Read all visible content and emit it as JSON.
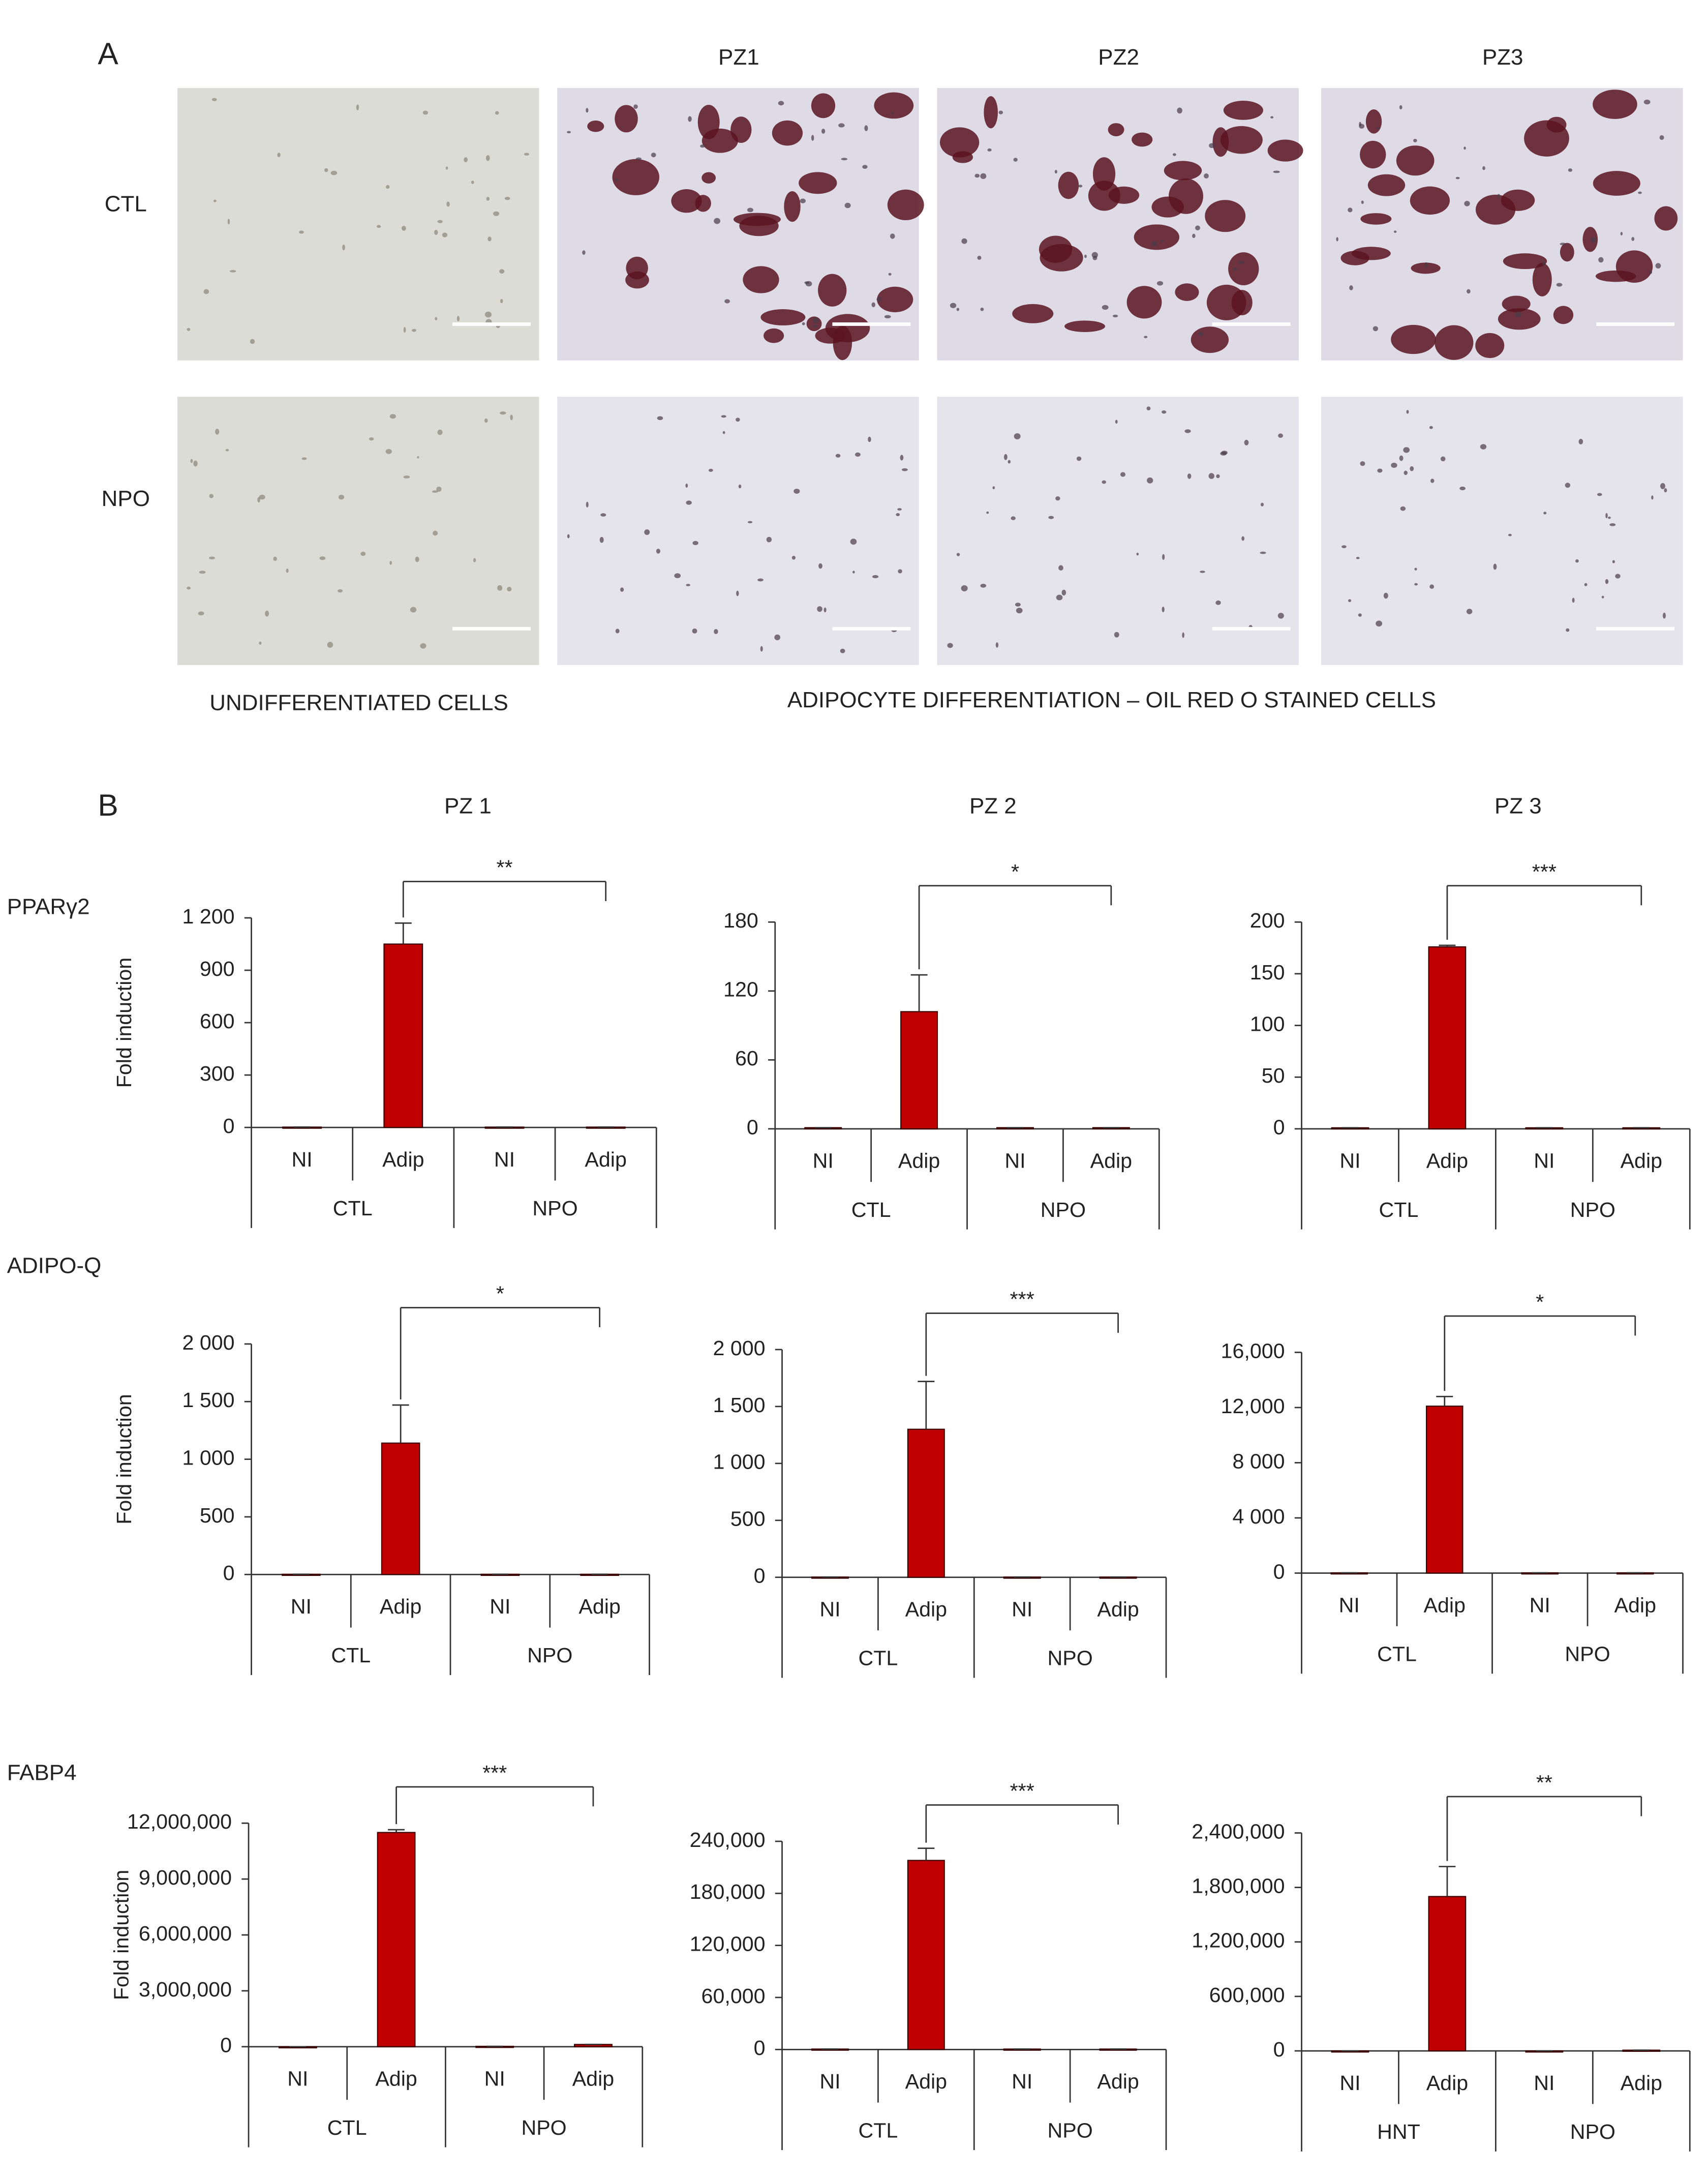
{
  "figure": {
    "panel_a": "A",
    "panel_b": "B",
    "columns_a": [
      "PZ1",
      "PZ2",
      "PZ3"
    ],
    "rows_a": [
      "CTL",
      "NPO"
    ],
    "caption_left": "UNDIFFERENTIATED CELLS",
    "caption_right": "ADIPOCYTE DIFFERENTIATION –  OIL RED O STAINED CELLS",
    "columns_b": [
      "PZ 1",
      "PZ 2",
      "PZ 3"
    ],
    "rows_b": [
      "PPARγ2",
      "ADIPO-Q",
      "FABP4"
    ]
  },
  "chart_data": [
    {
      "type": "bar",
      "ylabel": "Fold induction",
      "categories": [
        "NI",
        "Adip",
        "NI",
        "Adip"
      ],
      "groups": [
        "CTL",
        "NPO"
      ],
      "values": [
        2,
        1050,
        2,
        2
      ],
      "errors": [
        0,
        120,
        0,
        0
      ],
      "color": "#c00000",
      "annotation": "**",
      "ylim": [
        0,
        1200
      ],
      "yticks": [
        0,
        300,
        600,
        900,
        {
          "value": 1200,
          "label": "1 200"
        }
      ]
    },
    {
      "type": "bar",
      "categories": [
        "NI",
        "Adip",
        "NI",
        "Adip"
      ],
      "groups": [
        "CTL",
        "NPO"
      ],
      "values": [
        1,
        102,
        1,
        1
      ],
      "errors": [
        0,
        32,
        0,
        0
      ],
      "color": "#c00000",
      "annotation": "*",
      "ylim": [
        0,
        180
      ],
      "yticks": [
        0,
        60,
        120,
        180
      ]
    },
    {
      "type": "bar",
      "categories": [
        "NI",
        "Adip",
        "NI",
        "Adip"
      ],
      "groups": [
        "CTL",
        "NPO"
      ],
      "values": [
        1,
        176,
        1,
        1
      ],
      "errors": [
        0,
        1.5,
        0,
        0
      ],
      "color": "#c00000",
      "annotation": "***",
      "ylim": [
        0,
        200
      ],
      "yticks": [
        0,
        50,
        100,
        150,
        200
      ]
    },
    {
      "type": "bar",
      "ylabel": "Fold induction",
      "categories": [
        "NI",
        "Adip",
        "NI",
        "Adip"
      ],
      "groups": [
        "CTL",
        "NPO"
      ],
      "values": [
        2,
        1140,
        2,
        2
      ],
      "errors": [
        0,
        330,
        0,
        0
      ],
      "color": "#c00000",
      "annotation": "*",
      "ylim": [
        0,
        2000
      ],
      "yticks": [
        0,
        500,
        {
          "value": 1000,
          "label": "1 000"
        },
        {
          "value": 1500,
          "label": "1 500"
        },
        {
          "value": 2000,
          "label": "2 000"
        }
      ]
    },
    {
      "type": "bar",
      "categories": [
        "NI",
        "Adip",
        "NI",
        "Adip"
      ],
      "groups": [
        "CTL",
        "NPO"
      ],
      "values": [
        2,
        1300,
        2,
        2
      ],
      "errors": [
        0,
        420,
        0,
        0
      ],
      "color": "#c00000",
      "annotation": "***",
      "ylim": [
        0,
        2000
      ],
      "yticks": [
        0,
        500,
        {
          "value": 1000,
          "label": "1 000"
        },
        {
          "value": 1500,
          "label": "1 500"
        },
        {
          "value": 2000,
          "label": "2 000"
        }
      ]
    },
    {
      "type": "bar",
      "categories": [
        "NI",
        "Adip",
        "NI",
        "Adip"
      ],
      "groups": [
        "CTL",
        "NPO"
      ],
      "values": [
        20,
        12100,
        20,
        20
      ],
      "errors": [
        0,
        700,
        0,
        0
      ],
      "color": "#c00000",
      "annotation": "*",
      "ylim": [
        0,
        16000
      ],
      "yticks": [
        0,
        {
          "value": 4000,
          "label": "4 000"
        },
        {
          "value": 8000,
          "label": "8 000"
        },
        {
          "value": 12000,
          "label": "12,000"
        },
        {
          "value": 16000,
          "label": "16,000"
        }
      ]
    },
    {
      "type": "bar",
      "ylabel": "Fold induction",
      "categories": [
        "NI",
        "Adip",
        "NI",
        "Adip"
      ],
      "groups": [
        "CTL",
        "NPO"
      ],
      "values": [
        0,
        11500000,
        20000,
        120000
      ],
      "errors": [
        0,
        150000,
        0,
        0
      ],
      "color": "#c00000",
      "annotation": "***",
      "ylim": [
        0,
        12000000
      ],
      "yticks": [
        0,
        {
          "value": 3000000,
          "label": "3,000,000"
        },
        {
          "value": 6000000,
          "label": "6,000,000"
        },
        {
          "value": 9000000,
          "label": "9,000,000"
        },
        {
          "value": 12000000,
          "label": "12,000,000"
        }
      ]
    },
    {
      "type": "bar",
      "categories": [
        "NI",
        "Adip",
        "NI",
        "Adip"
      ],
      "groups": [
        "CTL",
        "NPO"
      ],
      "values": [
        500,
        218000,
        500,
        500
      ],
      "errors": [
        0,
        14000,
        0,
        0
      ],
      "color": "#c00000",
      "annotation": "***",
      "ylim": [
        0,
        240000
      ],
      "yticks": [
        0,
        {
          "value": 60000,
          "label": "60,000"
        },
        {
          "value": 120000,
          "label": "120,000"
        },
        {
          "value": 180000,
          "label": "180,000"
        },
        {
          "value": 240000,
          "label": "240,000"
        }
      ]
    },
    {
      "type": "bar",
      "categories": [
        "NI",
        "Adip",
        "NI",
        "Adip"
      ],
      "groups": [
        "HNT",
        "NPO"
      ],
      "values": [
        0,
        1700000,
        0,
        8000
      ],
      "errors": [
        0,
        330000,
        0,
        0
      ],
      "color": "#c00000",
      "annotation": "**",
      "ylim": [
        0,
        2400000
      ],
      "yticks": [
        0,
        {
          "value": 600000,
          "label": "600,000"
        },
        {
          "value": 1200000,
          "label": "1,200,000"
        },
        {
          "value": 1800000,
          "label": "1,800,000"
        },
        {
          "value": 2400000,
          "label": "2,400,000"
        }
      ]
    }
  ]
}
